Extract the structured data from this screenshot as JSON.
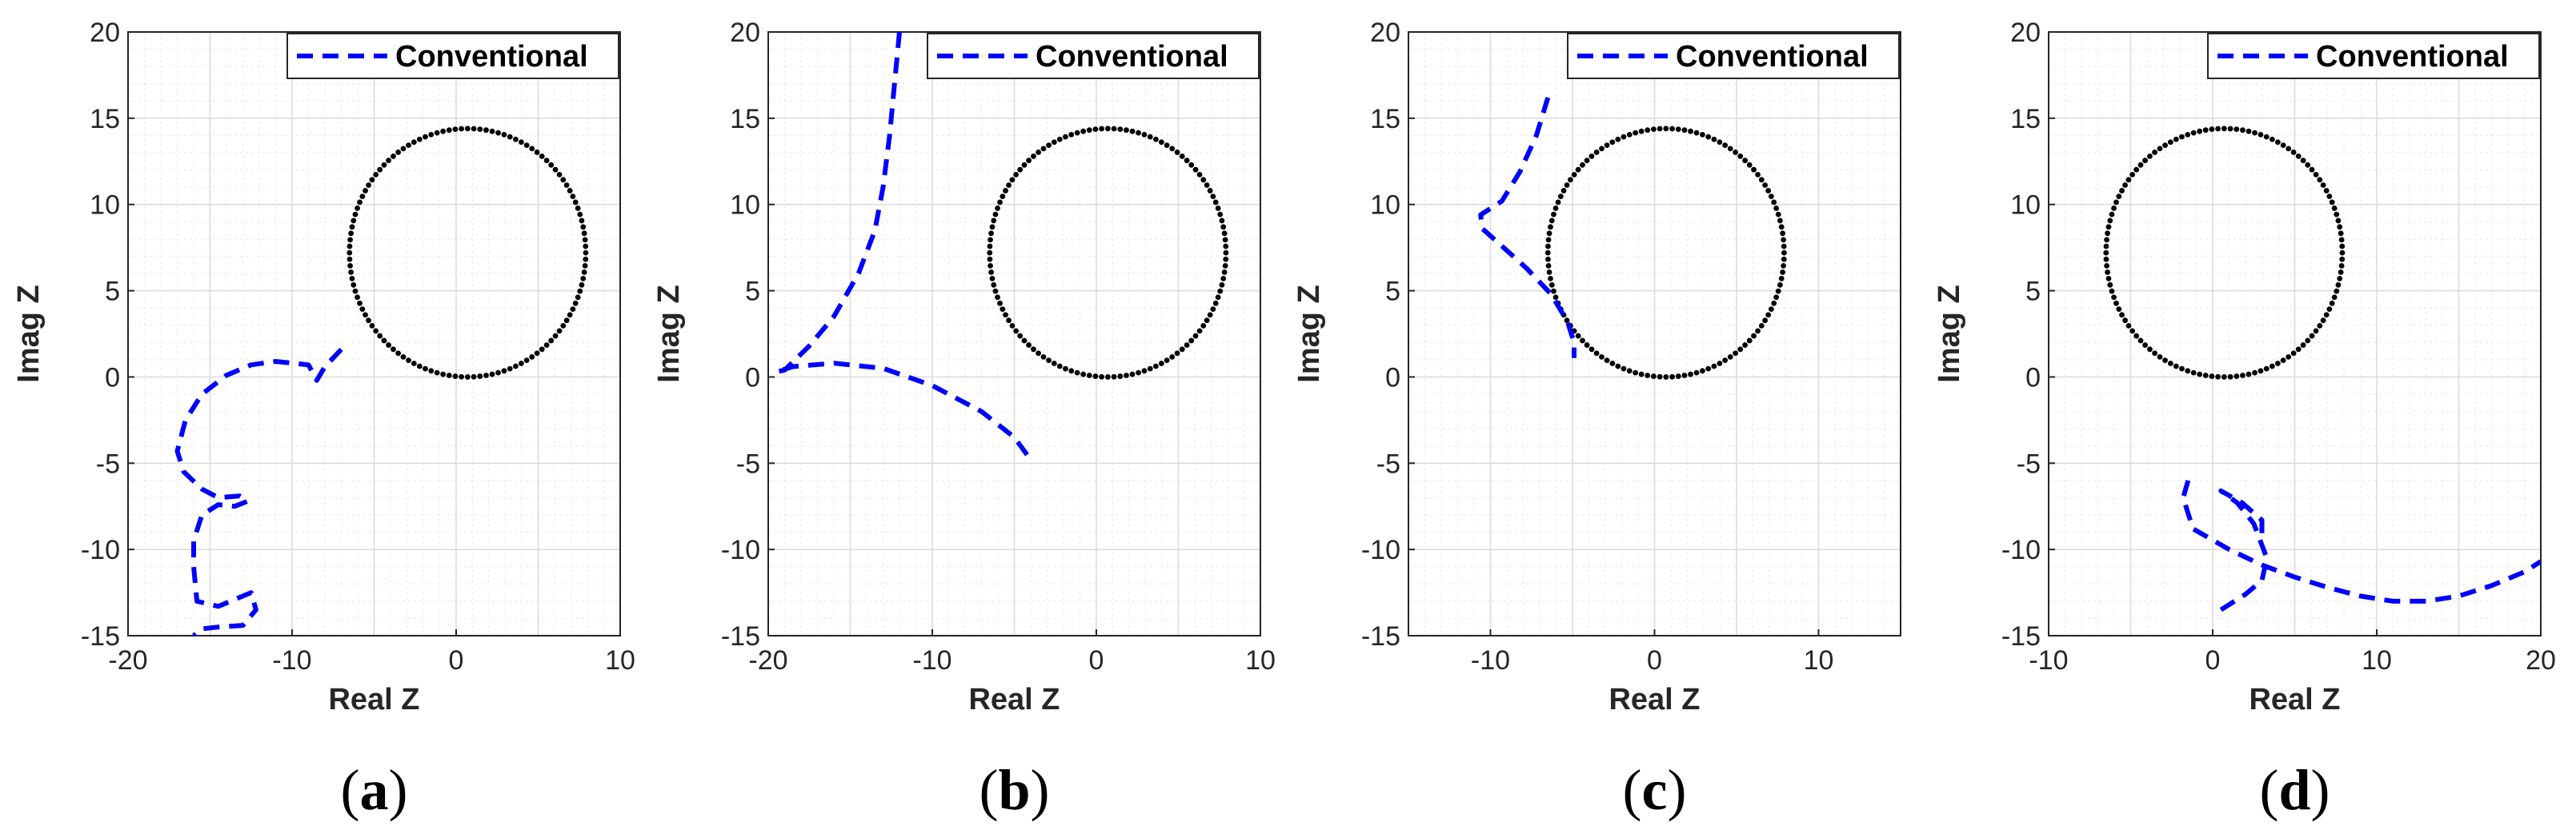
{
  "colors": {
    "conventional": "#0000ff",
    "circle": "#000000",
    "grid_major": "#dcdcdc",
    "grid_minor": "#ececec",
    "axis": "#262626"
  },
  "chart_data": [
    {
      "type": "line",
      "panel_label": "a",
      "xlabel": "Real Z",
      "ylabel": "Imag Z",
      "xlim": [
        -20,
        10
      ],
      "ylim": [
        -15,
        20
      ],
      "xticks": [
        -20,
        -10,
        0,
        10
      ],
      "yticks": [
        -15,
        -10,
        -5,
        0,
        5,
        10,
        15,
        20
      ],
      "grid": true,
      "legend": {
        "location": "top-right",
        "entries": [
          "Conventional"
        ]
      },
      "circle": {
        "center": [
          0.7,
          7.2
        ],
        "radius": 7.2,
        "style": "dotted",
        "color": "black"
      },
      "series": [
        {
          "name": "Conventional",
          "style": "dashed",
          "color": "blue",
          "x": [
            -7,
            -8,
            -8.5,
            -9,
            -11,
            -12.5,
            -14,
            -15.5,
            -16.5,
            -17,
            -16.6,
            -15.5,
            -14.5,
            -13.2,
            -12.7,
            -13.5,
            -14.5,
            -15.5,
            -16,
            -16,
            -15.8,
            -14.5,
            -12.5,
            -12.2,
            -13,
            -14.5,
            -15.5,
            -16
          ],
          "y": [
            1.6,
            0.6,
            -0.2,
            0.7,
            0.9,
            0.7,
            0.1,
            -1,
            -2.5,
            -4.3,
            -5.5,
            -6.5,
            -7,
            -6.9,
            -7.2,
            -7.5,
            -7.4,
            -8,
            -9.5,
            -11,
            -13,
            -13.3,
            -12.5,
            -13.5,
            -14.4,
            -14.5,
            -14.6,
            -15
          ]
        }
      ]
    },
    {
      "type": "line",
      "panel_label": "b",
      "xlabel": "Real Z",
      "ylabel": "Imag Z",
      "xlim": [
        -20,
        10
      ],
      "ylim": [
        -15,
        20
      ],
      "xticks": [
        -20,
        -10,
        0,
        10
      ],
      "yticks": [
        -15,
        -10,
        -5,
        0,
        5,
        10,
        15,
        20
      ],
      "grid": true,
      "legend": {
        "location": "top-right",
        "entries": [
          "Conventional"
        ]
      },
      "circle": {
        "center": [
          0.7,
          7.2
        ],
        "radius": 7.2,
        "style": "dotted",
        "color": "black"
      },
      "series": [
        {
          "name": "Conventional",
          "style": "dashed",
          "color": "blue",
          "x": [
            -12,
            -12.3,
            -12.6,
            -13,
            -13.5,
            -14.5,
            -16,
            -17.5,
            -19,
            -19.5,
            -18.5,
            -16,
            -13,
            -10,
            -7,
            -5,
            -4
          ],
          "y": [
            20,
            17,
            14,
            11,
            8.5,
            6,
            3.5,
            1.8,
            0.4,
            0.3,
            0.6,
            0.8,
            0.5,
            -0.5,
            -2,
            -3.5,
            -4.8
          ]
        }
      ]
    },
    {
      "type": "line",
      "panel_label": "c",
      "xlabel": "Real Z",
      "ylabel": "Imag Z",
      "xlim": [
        -15,
        15
      ],
      "ylim": [
        -15,
        20
      ],
      "xticks": [
        -10,
        0,
        10
      ],
      "yticks": [
        -15,
        -10,
        -5,
        0,
        5,
        10,
        15,
        20
      ],
      "grid": true,
      "legend": {
        "location": "top-right",
        "entries": [
          "Conventional"
        ]
      },
      "circle": {
        "center": [
          0.7,
          7.2
        ],
        "radius": 7.2,
        "style": "dotted",
        "color": "black"
      },
      "series": [
        {
          "name": "Conventional",
          "style": "dashed",
          "color": "blue",
          "x": [
            -6.5,
            -7.2,
            -8.2,
            -9.3,
            -10.6,
            -10.5,
            -9.2,
            -7.8,
            -6.3,
            -5.3,
            -4.9,
            -4.9
          ],
          "y": [
            16.2,
            14,
            11.9,
            10.2,
            9.4,
            8.6,
            7.5,
            6.3,
            4.8,
            3.2,
            2,
            1.1
          ]
        }
      ]
    },
    {
      "type": "line",
      "panel_label": "d",
      "xlabel": "Real Z",
      "ylabel": "Imag Z",
      "xlim": [
        -10,
        20
      ],
      "ylim": [
        -15,
        20
      ],
      "xticks": [
        -10,
        0,
        10,
        20
      ],
      "yticks": [
        -15,
        -10,
        -5,
        0,
        5,
        10,
        15,
        20
      ],
      "grid": true,
      "legend": {
        "location": "top-right",
        "entries": [
          "Conventional"
        ]
      },
      "circle": {
        "center": [
          0.7,
          7.2
        ],
        "radius": 7.2,
        "style": "dotted",
        "color": "black"
      },
      "series": [
        {
          "name": "Conventional",
          "style": "dashed",
          "color": "blue",
          "x": [
            0.5,
            2,
            3,
            3.3,
            2.5,
            1.5,
            0.5,
            1.8,
            3,
            3
          ],
          "y": [
            -13.5,
            -12.6,
            -11.8,
            -10.5,
            -8.5,
            -7.3,
            -6.6,
            -7.3,
            -8.3,
            -9.5
          ],
          "x2": [
            -1.5,
            -1.8,
            -1.2,
            1,
            3,
            5,
            7,
            9,
            11,
            13,
            15,
            17,
            19,
            20
          ],
          "y2": [
            -6,
            -7,
            -8.8,
            -10,
            -10.9,
            -11.6,
            -12.2,
            -12.7,
            -13,
            -13,
            -12.7,
            -12.1,
            -11.3,
            -10.7
          ]
        }
      ]
    }
  ]
}
